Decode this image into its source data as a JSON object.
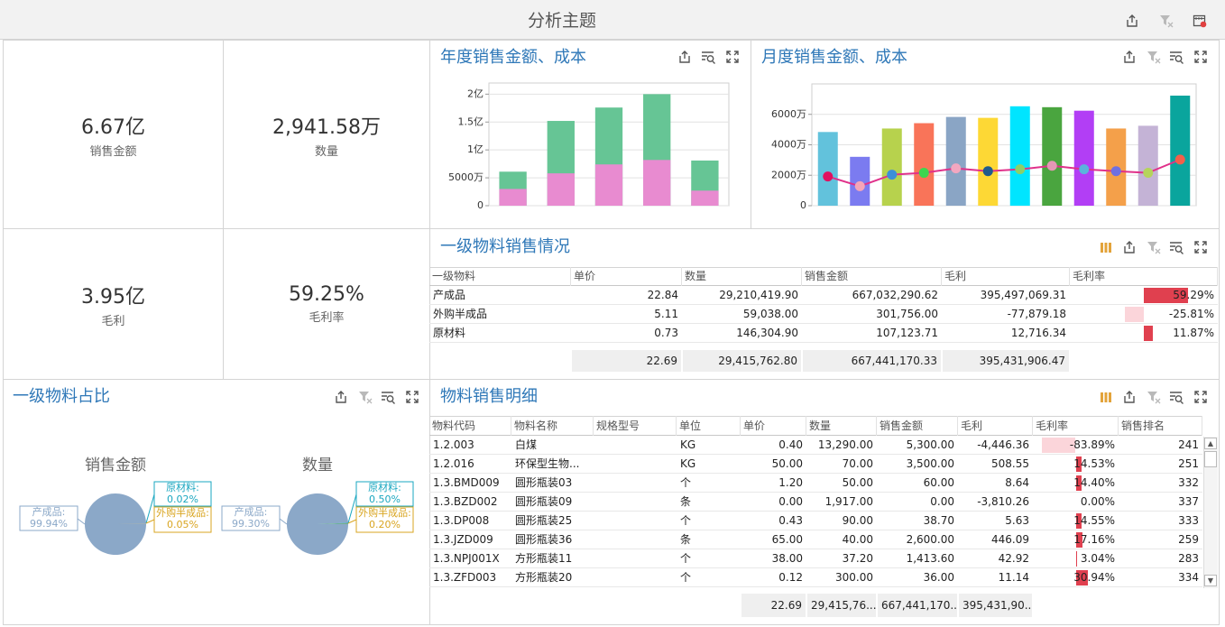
{
  "header": {
    "title": "分析主题"
  },
  "kpis": [
    {
      "value": "6.67亿",
      "label": "销售金额"
    },
    {
      "value": "2,941.58万",
      "label": "数量"
    },
    {
      "value": "3.95亿",
      "label": "毛利"
    },
    {
      "value": "59.25%",
      "label": "毛利率"
    }
  ],
  "chart_data": [
    {
      "type": "bar",
      "title": "年度销售金额、成本",
      "categories": [
        null,
        null,
        null,
        null,
        null
      ],
      "overlap": true,
      "series": [
        {
          "color": "#66c595",
          "values": [
            61000000,
            152000000,
            176000000,
            200000000,
            81000000
          ]
        },
        {
          "color": "#e88bd0",
          "values": [
            30000000,
            58000000,
            74000000,
            82000000,
            27000000
          ]
        }
      ],
      "ylim": [
        0,
        220000000
      ],
      "yticks": [
        0,
        {
          "value": 50000000,
          "label": "5000万"
        },
        {
          "value": 100000000,
          "label": "1亿"
        },
        {
          "value": 150000000,
          "label": "1.5亿"
        },
        {
          "value": 200000000,
          "label": "2亿"
        }
      ],
      "grid": true
    },
    {
      "type": "bar-line",
      "title": "月度销售金额、成本",
      "categories": [
        null,
        null,
        null,
        null,
        null,
        null,
        null,
        null,
        null,
        null,
        null,
        null
      ],
      "series": [
        {
          "type": "bar",
          "colors": [
            "#62c2dc",
            "#7b7bf0",
            "#b7d24d",
            "#f97459",
            "#8aa5c5",
            "#fdd835",
            "#00e5ff",
            "#4aa53f",
            "#b23ef5",
            "#f4a04a",
            "#c4b3d6",
            "#0aa59d"
          ],
          "values": [
            48400000,
            32100000,
            50700000,
            54200000,
            58300000,
            57700000,
            65300000,
            64700000,
            62400000,
            50700000,
            52500000,
            72300000
          ]
        },
        {
          "type": "line",
          "color": "#e0318a",
          "marker_colors": [
            "#e0115f",
            "#f5a5b8",
            "#3c8fd8",
            "#3ed64f",
            "#f2a7c0",
            "#1f5b8c",
            "#8ccf6a",
            "#e597b5",
            "#5ab4dc",
            "#7070e0",
            "#b5d45b",
            "#f3604a"
          ],
          "values": [
            19200000,
            12800000,
            20400000,
            21600000,
            24500000,
            22700000,
            23900000,
            26200000,
            23900000,
            22700000,
            21600000,
            30300000
          ]
        }
      ],
      "ylim": [
        0,
        80000000
      ],
      "yticks": [
        0,
        {
          "value": 20000000,
          "label": "2000万"
        },
        {
          "value": 40000000,
          "label": "4000万"
        },
        {
          "value": 60000000,
          "label": "6000万"
        }
      ],
      "grid": true
    },
    {
      "type": "pie",
      "title": "销售金额",
      "categories": [
        "产成品:",
        "原材料:",
        "外购半成品:"
      ],
      "values": [
        99.94,
        0.02,
        0.05
      ],
      "value_labels": [
        "99.94%",
        "0.02%",
        "0.05%"
      ],
      "colors": [
        "#8ba8c8",
        "#1aa7c0",
        "#d9a520"
      ]
    },
    {
      "type": "pie",
      "title": "数量",
      "categories": [
        "产成品:",
        "原材料:",
        "外购半成品:"
      ],
      "values": [
        99.3,
        0.5,
        0.2
      ],
      "value_labels": [
        "99.30%",
        "0.50%",
        "0.20%"
      ],
      "colors": [
        "#8ba8c8",
        "#1aa7c0",
        "#d9a520"
      ]
    }
  ],
  "pie_panel": {
    "title": "一级物料占比"
  },
  "table_summary": {
    "title": "一级物料销售情况",
    "columns": [
      "一级物料",
      "单价",
      "数量",
      "销售金额",
      "毛利",
      "毛利率"
    ],
    "rows": [
      [
        "产成品",
        "22.84",
        "29,210,419.90",
        "667,032,290.62",
        "395,497,069.31",
        "59.29%"
      ],
      [
        "外购半成品",
        "5.11",
        "59,038.00",
        "301,756.00",
        "-77,879.18",
        "-25.81%"
      ],
      [
        "原材料",
        "0.73",
        "146,304.90",
        "107,123.71",
        "12,716.34",
        "11.87%"
      ]
    ],
    "totals": [
      null,
      "22.69",
      "29,415,762.80",
      "667,441,170.33",
      "395,431,906.47",
      null
    ]
  },
  "table_detail": {
    "title": "物料销售明细",
    "columns": [
      "物料代码",
      "物料名称",
      "规格型号",
      "单位",
      "单价",
      "数量",
      "销售金额",
      "毛利",
      "毛利率",
      "销售排名"
    ],
    "rows": [
      [
        "1.2.003",
        "白煤",
        null,
        "KG",
        "0.40",
        "13,290.00",
        "5,300.00",
        "-4,446.36",
        "-83.89%",
        "241"
      ],
      [
        "1.2.016",
        "环保型生物...",
        null,
        "KG",
        "50.00",
        "70.00",
        "3,500.00",
        "508.55",
        "14.53%",
        "251"
      ],
      [
        "1.3.BMD009",
        "圆形瓶装03",
        null,
        "个",
        "1.20",
        "50.00",
        "60.00",
        "8.64",
        "14.40%",
        "332"
      ],
      [
        "1.3.BZD002",
        "圆形瓶装09",
        null,
        "条",
        "0.00",
        "1,917.00",
        "0.00",
        "-3,810.26",
        "0.00%",
        "337"
      ],
      [
        "1.3.DP008",
        "圆形瓶装25",
        null,
        "个",
        "0.43",
        "90.00",
        "38.70",
        "5.63",
        "14.55%",
        "333"
      ],
      [
        "1.3.JZD009",
        "圆形瓶装36",
        null,
        "条",
        "65.00",
        "40.00",
        "2,600.00",
        "446.09",
        "17.16%",
        "259"
      ],
      [
        "1.3.NPJ001X",
        "方形瓶装11",
        null,
        "个",
        "38.00",
        "37.20",
        "1,413.60",
        "42.92",
        "3.04%",
        "283"
      ],
      [
        "1.3.ZFD003",
        "方形瓶装20",
        null,
        "个",
        "0.12",
        "300.00",
        "36.00",
        "11.14",
        "30.94%",
        "334"
      ]
    ],
    "totals": [
      null,
      null,
      null,
      null,
      "22.69",
      "29,415,76...",
      "667,441,170...",
      "395,431,90...",
      null,
      null
    ]
  }
}
